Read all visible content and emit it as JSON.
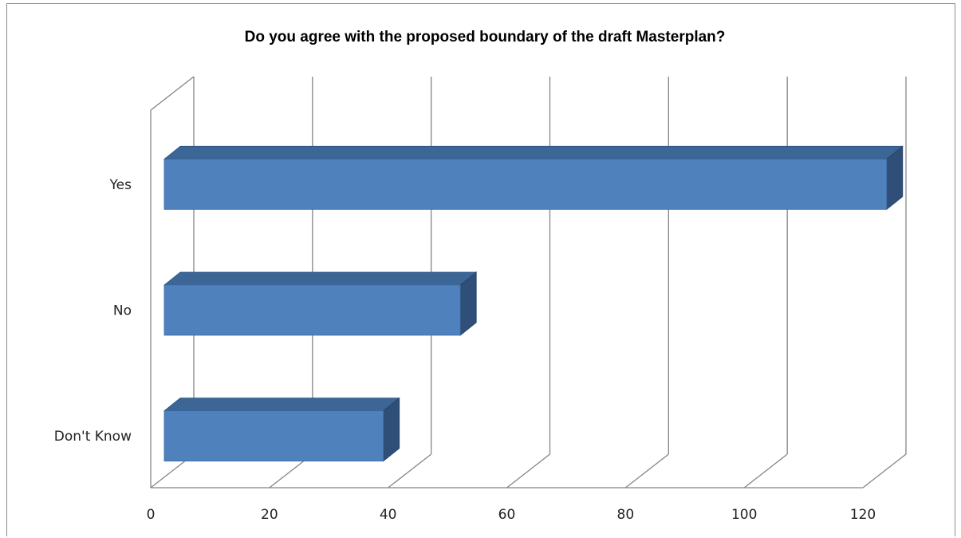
{
  "chart_data": {
    "type": "bar",
    "orientation": "horizontal",
    "style": "3d-clustered",
    "title": "Do you agree with the proposed boundary of the draft Masterplan?",
    "categories": [
      "Yes",
      "No",
      "Don't Know"
    ],
    "values": [
      122,
      50,
      37
    ],
    "xlim": [
      0,
      120
    ],
    "xticks": [
      "0",
      "20",
      "40",
      "60",
      "80",
      "100",
      "120"
    ],
    "grid": "vertical",
    "legend": "none",
    "colors": {
      "bar_front": "#4f81bd",
      "bar_top": "#3c6696",
      "bar_side": "#2f4f78",
      "grid": "#858585"
    }
  }
}
